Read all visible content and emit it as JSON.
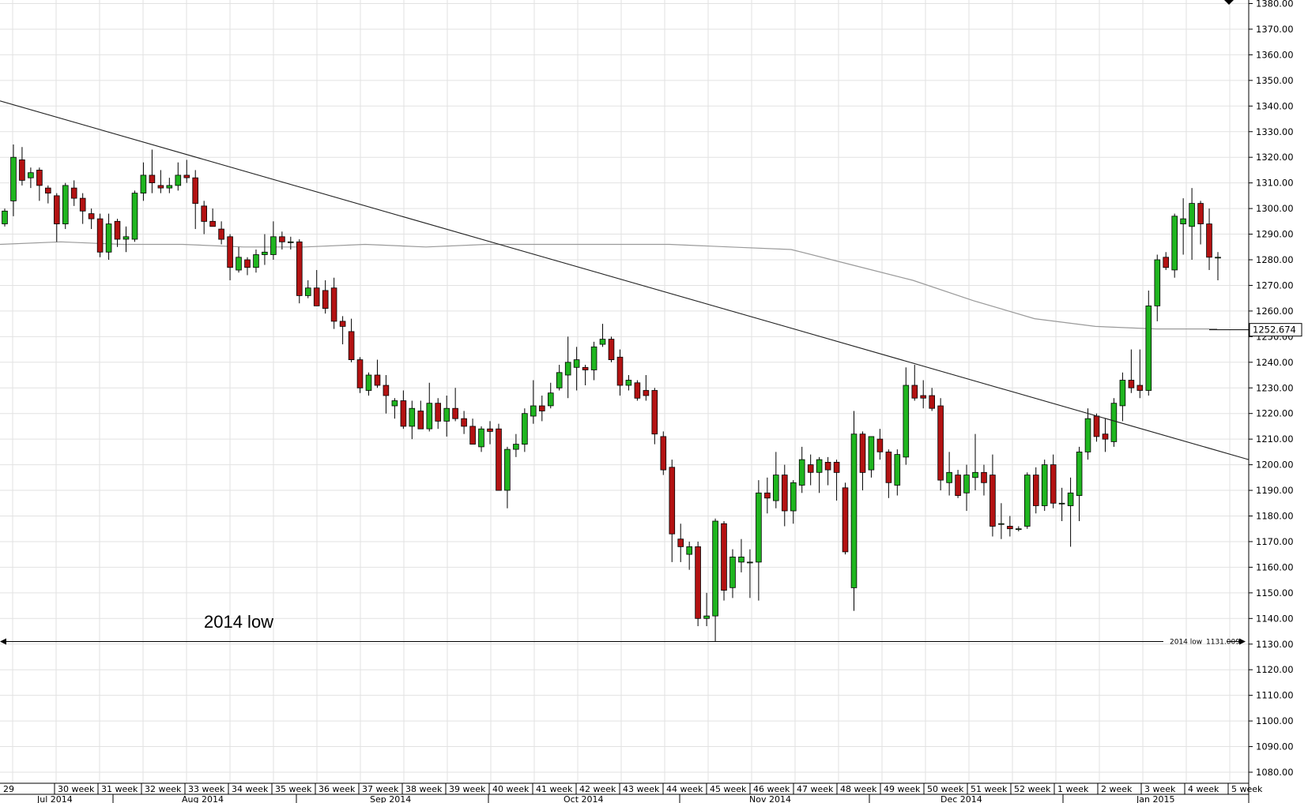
{
  "chart_data": {
    "type": "candlestick",
    "title": "",
    "xlabel": "",
    "ylabel": "",
    "ylim": [
      1075,
      1382
    ],
    "y_ticks": [
      1080,
      1090,
      1100,
      1110,
      1120,
      1130,
      1140,
      1150,
      1160,
      1170,
      1180,
      1190,
      1200,
      1210,
      1220,
      1230,
      1240,
      1250,
      1260,
      1270,
      1280,
      1290,
      1300,
      1310,
      1320,
      1330,
      1340,
      1350,
      1360,
      1370,
      1380
    ],
    "y_tick_labels": [
      "1080.00",
      "1090.00",
      "1100.00",
      "1110.00",
      "1120.00",
      "1130.00",
      "1140.00",
      "1150.00",
      "1160.00",
      "1170.00",
      "1180.00",
      "1190.00",
      "1200.00",
      "1210.00",
      "1220.00",
      "1230.00",
      "1240.00",
      "1250.00",
      "1260.00",
      "1270.00",
      "1280.00",
      "1290.00",
      "1300.00",
      "1310.00",
      "1320.00",
      "1330.00",
      "1340.00",
      "1350.00",
      "1360.00",
      "1370.00",
      "1380.00"
    ],
    "grid": true,
    "weeks": [
      "29",
      "30 week",
      "31 week",
      "32 week",
      "33 week",
      "34 week",
      "35 week",
      "36 week",
      "37 week",
      "38 week",
      "39 week",
      "40 week",
      "41 week",
      "42 week",
      "43 week",
      "44 week",
      "45 week",
      "46 week",
      "47 week",
      "48 week",
      "49 week",
      "50 week",
      "51 week",
      "52 week",
      "1 week",
      "2 week",
      "3 week",
      "4 week",
      "5 week"
    ],
    "months": [
      "Jul 2014",
      "Aug 2014",
      "Sep 2014",
      "Oct 2014",
      "Nov 2014",
      "Dec 2014",
      "Jan 2015"
    ],
    "colors": {
      "up": "#1fb51f",
      "down": "#b31212",
      "grid": "#e2e2e2",
      "ma": "#9a9a9a"
    },
    "candles": [
      {
        "o": 1294,
        "h": 1300,
        "l": 1293,
        "c": 1299
      },
      {
        "o": 1303,
        "h": 1325,
        "l": 1297,
        "c": 1320
      },
      {
        "o": 1319,
        "h": 1324,
        "l": 1309,
        "c": 1311
      },
      {
        "o": 1312,
        "h": 1316,
        "l": 1308,
        "c": 1314
      },
      {
        "o": 1315,
        "h": 1316,
        "l": 1303,
        "c": 1309
      },
      {
        "o": 1308,
        "h": 1309,
        "l": 1302,
        "c": 1306
      },
      {
        "o": 1305,
        "h": 1306,
        "l": 1287,
        "c": 1294
      },
      {
        "o": 1294,
        "h": 1310,
        "l": 1292,
        "c": 1309
      },
      {
        "o": 1308,
        "h": 1311,
        "l": 1301,
        "c": 1304
      },
      {
        "o": 1304,
        "h": 1306,
        "l": 1294,
        "c": 1299
      },
      {
        "o": 1298,
        "h": 1300,
        "l": 1292,
        "c": 1296
      },
      {
        "o": 1296,
        "h": 1298,
        "l": 1281,
        "c": 1283
      },
      {
        "o": 1283,
        "h": 1298,
        "l": 1280,
        "c": 1294
      },
      {
        "o": 1295,
        "h": 1296,
        "l": 1285,
        "c": 1288
      },
      {
        "o": 1288,
        "h": 1293,
        "l": 1283,
        "c": 1289
      },
      {
        "o": 1288,
        "h": 1307,
        "l": 1287,
        "c": 1306
      },
      {
        "o": 1306,
        "h": 1318,
        "l": 1303,
        "c": 1313
      },
      {
        "o": 1313,
        "h": 1323,
        "l": 1306,
        "c": 1310
      },
      {
        "o": 1309,
        "h": 1315,
        "l": 1306,
        "c": 1308
      },
      {
        "o": 1308,
        "h": 1312,
        "l": 1306,
        "c": 1309
      },
      {
        "o": 1309,
        "h": 1318,
        "l": 1307,
        "c": 1313
      },
      {
        "o": 1313,
        "h": 1319,
        "l": 1310,
        "c": 1312
      },
      {
        "o": 1312,
        "h": 1315,
        "l": 1292,
        "c": 1302
      },
      {
        "o": 1301,
        "h": 1303,
        "l": 1290,
        "c": 1295
      },
      {
        "o": 1295,
        "h": 1300,
        "l": 1293,
        "c": 1293
      },
      {
        "o": 1292,
        "h": 1295,
        "l": 1286,
        "c": 1288
      },
      {
        "o": 1289,
        "h": 1290,
        "l": 1272,
        "c": 1277
      },
      {
        "o": 1276,
        "h": 1285,
        "l": 1275,
        "c": 1281
      },
      {
        "o": 1280,
        "h": 1281,
        "l": 1274,
        "c": 1277
      },
      {
        "o": 1277,
        "h": 1284,
        "l": 1275,
        "c": 1282
      },
      {
        "o": 1282,
        "h": 1290,
        "l": 1278,
        "c": 1283
      },
      {
        "o": 1282,
        "h": 1295,
        "l": 1280,
        "c": 1289
      },
      {
        "o": 1289,
        "h": 1291,
        "l": 1284,
        "c": 1287
      },
      {
        "o": 1287,
        "h": 1289,
        "l": 1284,
        "c": 1287
      },
      {
        "o": 1287,
        "h": 1288,
        "l": 1263,
        "c": 1266
      },
      {
        "o": 1266,
        "h": 1272,
        "l": 1265,
        "c": 1269
      },
      {
        "o": 1269,
        "h": 1276,
        "l": 1262,
        "c": 1262
      },
      {
        "o": 1268,
        "h": 1272,
        "l": 1259,
        "c": 1261
      },
      {
        "o": 1269,
        "h": 1273,
        "l": 1253,
        "c": 1256
      },
      {
        "o": 1256,
        "h": 1258,
        "l": 1247,
        "c": 1254
      },
      {
        "o": 1252,
        "h": 1257,
        "l": 1240,
        "c": 1241
      },
      {
        "o": 1241,
        "h": 1242,
        "l": 1228,
        "c": 1230
      },
      {
        "o": 1229,
        "h": 1236,
        "l": 1227,
        "c": 1235
      },
      {
        "o": 1235,
        "h": 1241,
        "l": 1230,
        "c": 1231
      },
      {
        "o": 1231,
        "h": 1235,
        "l": 1220,
        "c": 1227
      },
      {
        "o": 1223,
        "h": 1226,
        "l": 1218,
        "c": 1225
      },
      {
        "o": 1225,
        "h": 1229,
        "l": 1214,
        "c": 1215
      },
      {
        "o": 1215,
        "h": 1225,
        "l": 1210,
        "c": 1222
      },
      {
        "o": 1221,
        "h": 1225,
        "l": 1214,
        "c": 1214
      },
      {
        "o": 1214,
        "h": 1232,
        "l": 1213,
        "c": 1224
      },
      {
        "o": 1224,
        "h": 1226,
        "l": 1214,
        "c": 1217
      },
      {
        "o": 1217,
        "h": 1227,
        "l": 1211,
        "c": 1222
      },
      {
        "o": 1222,
        "h": 1230,
        "l": 1217,
        "c": 1218
      },
      {
        "o": 1218,
        "h": 1221,
        "l": 1212,
        "c": 1215
      },
      {
        "o": 1215,
        "h": 1218,
        "l": 1208,
        "c": 1208
      },
      {
        "o": 1207,
        "h": 1215,
        "l": 1205,
        "c": 1214
      },
      {
        "o": 1214,
        "h": 1217,
        "l": 1208,
        "c": 1213
      },
      {
        "o": 1214,
        "h": 1216,
        "l": 1190,
        "c": 1190
      },
      {
        "o": 1190,
        "h": 1207,
        "l": 1183,
        "c": 1206
      },
      {
        "o": 1206,
        "h": 1212,
        "l": 1203,
        "c": 1208
      },
      {
        "o": 1208,
        "h": 1222,
        "l": 1205,
        "c": 1220
      },
      {
        "o": 1219,
        "h": 1233,
        "l": 1216,
        "c": 1223
      },
      {
        "o": 1223,
        "h": 1227,
        "l": 1217,
        "c": 1221
      },
      {
        "o": 1223,
        "h": 1232,
        "l": 1222,
        "c": 1228
      },
      {
        "o": 1230,
        "h": 1239,
        "l": 1229,
        "c": 1236
      },
      {
        "o": 1235,
        "h": 1250,
        "l": 1226,
        "c": 1240
      },
      {
        "o": 1238,
        "h": 1246,
        "l": 1229,
        "c": 1241
      },
      {
        "o": 1238,
        "h": 1239,
        "l": 1231,
        "c": 1237
      },
      {
        "o": 1237,
        "h": 1248,
        "l": 1233,
        "c": 1246
      },
      {
        "o": 1247,
        "h": 1255,
        "l": 1246,
        "c": 1249
      },
      {
        "o": 1249,
        "h": 1250,
        "l": 1240,
        "c": 1241
      },
      {
        "o": 1242,
        "h": 1245,
        "l": 1227,
        "c": 1231
      },
      {
        "o": 1231,
        "h": 1235,
        "l": 1229,
        "c": 1233
      },
      {
        "o": 1232,
        "h": 1233,
        "l": 1225,
        "c": 1226
      },
      {
        "o": 1229,
        "h": 1235,
        "l": 1225,
        "c": 1227
      },
      {
        "o": 1229,
        "h": 1230,
        "l": 1208,
        "c": 1212
      },
      {
        "o": 1211,
        "h": 1213,
        "l": 1196,
        "c": 1198
      },
      {
        "o": 1199,
        "h": 1202,
        "l": 1162,
        "c": 1173
      },
      {
        "o": 1171,
        "h": 1177,
        "l": 1162,
        "c": 1168
      },
      {
        "o": 1165,
        "h": 1170,
        "l": 1159,
        "c": 1168
      },
      {
        "o": 1168,
        "h": 1170,
        "l": 1137,
        "c": 1140
      },
      {
        "o": 1140,
        "h": 1150,
        "l": 1137,
        "c": 1141
      },
      {
        "o": 1141,
        "h": 1179,
        "l": 1131,
        "c": 1178
      },
      {
        "o": 1177,
        "h": 1178,
        "l": 1147,
        "c": 1151
      },
      {
        "o": 1152,
        "h": 1167,
        "l": 1148,
        "c": 1164
      },
      {
        "o": 1162,
        "h": 1171,
        "l": 1158,
        "c": 1164
      },
      {
        "o": 1162,
        "h": 1167,
        "l": 1148,
        "c": 1162
      },
      {
        "o": 1162,
        "h": 1194,
        "l": 1147,
        "c": 1189
      },
      {
        "o": 1189,
        "h": 1195,
        "l": 1181,
        "c": 1187
      },
      {
        "o": 1186,
        "h": 1205,
        "l": 1183,
        "c": 1196
      },
      {
        "o": 1196,
        "h": 1200,
        "l": 1176,
        "c": 1182
      },
      {
        "o": 1182,
        "h": 1194,
        "l": 1177,
        "c": 1193
      },
      {
        "o": 1192,
        "h": 1207,
        "l": 1189,
        "c": 1202
      },
      {
        "o": 1200,
        "h": 1204,
        "l": 1192,
        "c": 1197
      },
      {
        "o": 1197,
        "h": 1203,
        "l": 1189,
        "c": 1202
      },
      {
        "o": 1201,
        "h": 1203,
        "l": 1192,
        "c": 1198
      },
      {
        "o": 1201,
        "h": 1202,
        "l": 1186,
        "c": 1197
      },
      {
        "o": 1191,
        "h": 1193,
        "l": 1165,
        "c": 1166
      },
      {
        "o": 1152,
        "h": 1221,
        "l": 1143,
        "c": 1212
      },
      {
        "o": 1212,
        "h": 1213,
        "l": 1190,
        "c": 1197
      },
      {
        "o": 1198,
        "h": 1208,
        "l": 1195,
        "c": 1211
      },
      {
        "o": 1210,
        "h": 1214,
        "l": 1202,
        "c": 1205
      },
      {
        "o": 1205,
        "h": 1206,
        "l": 1187,
        "c": 1193
      },
      {
        "o": 1192,
        "h": 1206,
        "l": 1188,
        "c": 1204
      },
      {
        "o": 1203,
        "h": 1238,
        "l": 1200,
        "c": 1231
      },
      {
        "o": 1231,
        "h": 1239,
        "l": 1225,
        "c": 1226
      },
      {
        "o": 1227,
        "h": 1233,
        "l": 1222,
        "c": 1226
      },
      {
        "o": 1227,
        "h": 1230,
        "l": 1221,
        "c": 1222
      },
      {
        "o": 1223,
        "h": 1226,
        "l": 1190,
        "c": 1194
      },
      {
        "o": 1193,
        "h": 1205,
        "l": 1188,
        "c": 1197
      },
      {
        "o": 1196,
        "h": 1198,
        "l": 1187,
        "c": 1188
      },
      {
        "o": 1189,
        "h": 1200,
        "l": 1182,
        "c": 1196
      },
      {
        "o": 1195,
        "h": 1212,
        "l": 1190,
        "c": 1197
      },
      {
        "o": 1197,
        "h": 1200,
        "l": 1188,
        "c": 1193
      },
      {
        "o": 1196,
        "h": 1204,
        "l": 1172,
        "c": 1176
      },
      {
        "o": 1177,
        "h": 1185,
        "l": 1171,
        "c": 1177
      },
      {
        "o": 1176,
        "h": 1180,
        "l": 1172,
        "c": 1175
      },
      {
        "o": 1175,
        "h": 1176,
        "l": 1174,
        "c": 1175
      },
      {
        "o": 1176,
        "h": 1197,
        "l": 1175,
        "c": 1196
      },
      {
        "o": 1196,
        "h": 1199,
        "l": 1181,
        "c": 1184
      },
      {
        "o": 1184,
        "h": 1202,
        "l": 1182,
        "c": 1200
      },
      {
        "o": 1200,
        "h": 1204,
        "l": 1183,
        "c": 1185
      },
      {
        "o": 1185,
        "h": 1191,
        "l": 1178,
        "c": 1185
      },
      {
        "o": 1184,
        "h": 1195,
        "l": 1168,
        "c": 1189
      },
      {
        "o": 1188,
        "h": 1207,
        "l": 1178,
        "c": 1205
      },
      {
        "o": 1205,
        "h": 1222,
        "l": 1202,
        "c": 1218
      },
      {
        "o": 1219,
        "h": 1220,
        "l": 1209,
        "c": 1211
      },
      {
        "o": 1212,
        "h": 1218,
        "l": 1205,
        "c": 1210
      },
      {
        "o": 1209,
        "h": 1226,
        "l": 1207,
        "c": 1224
      },
      {
        "o": 1223,
        "h": 1236,
        "l": 1217,
        "c": 1233
      },
      {
        "o": 1233,
        "h": 1245,
        "l": 1228,
        "c": 1230
      },
      {
        "o": 1231,
        "h": 1245,
        "l": 1226,
        "c": 1229
      },
      {
        "o": 1229,
        "h": 1268,
        "l": 1227,
        "c": 1262
      },
      {
        "o": 1262,
        "h": 1282,
        "l": 1256,
        "c": 1280
      },
      {
        "o": 1281,
        "h": 1283,
        "l": 1276,
        "c": 1277
      },
      {
        "o": 1276,
        "h": 1298,
        "l": 1273,
        "c": 1297
      },
      {
        "o": 1294,
        "h": 1304,
        "l": 1282,
        "c": 1296
      },
      {
        "o": 1293,
        "h": 1308,
        "l": 1280,
        "c": 1302
      },
      {
        "o": 1302,
        "h": 1303,
        "l": 1286,
        "c": 1294
      },
      {
        "o": 1294,
        "h": 1300,
        "l": 1276,
        "c": 1281
      },
      {
        "o": 1281,
        "h": 1283,
        "l": 1272,
        "c": 1281
      }
    ],
    "moving_average": [
      1286,
      1287,
      1286,
      1286,
      1285,
      1285,
      1286,
      1285,
      1286,
      1286,
      1286,
      1286,
      1285,
      1284,
      1278,
      1272,
      1264,
      1257,
      1254,
      1253,
      1253
    ],
    "trendline": {
      "start_value": 1342,
      "end_value": 1202
    },
    "current_price_label": "1252.674",
    "hline": {
      "value": 1131,
      "left_label": "2014 low",
      "right_label_1": "2014 low",
      "right_label_2": "1131.009"
    }
  }
}
